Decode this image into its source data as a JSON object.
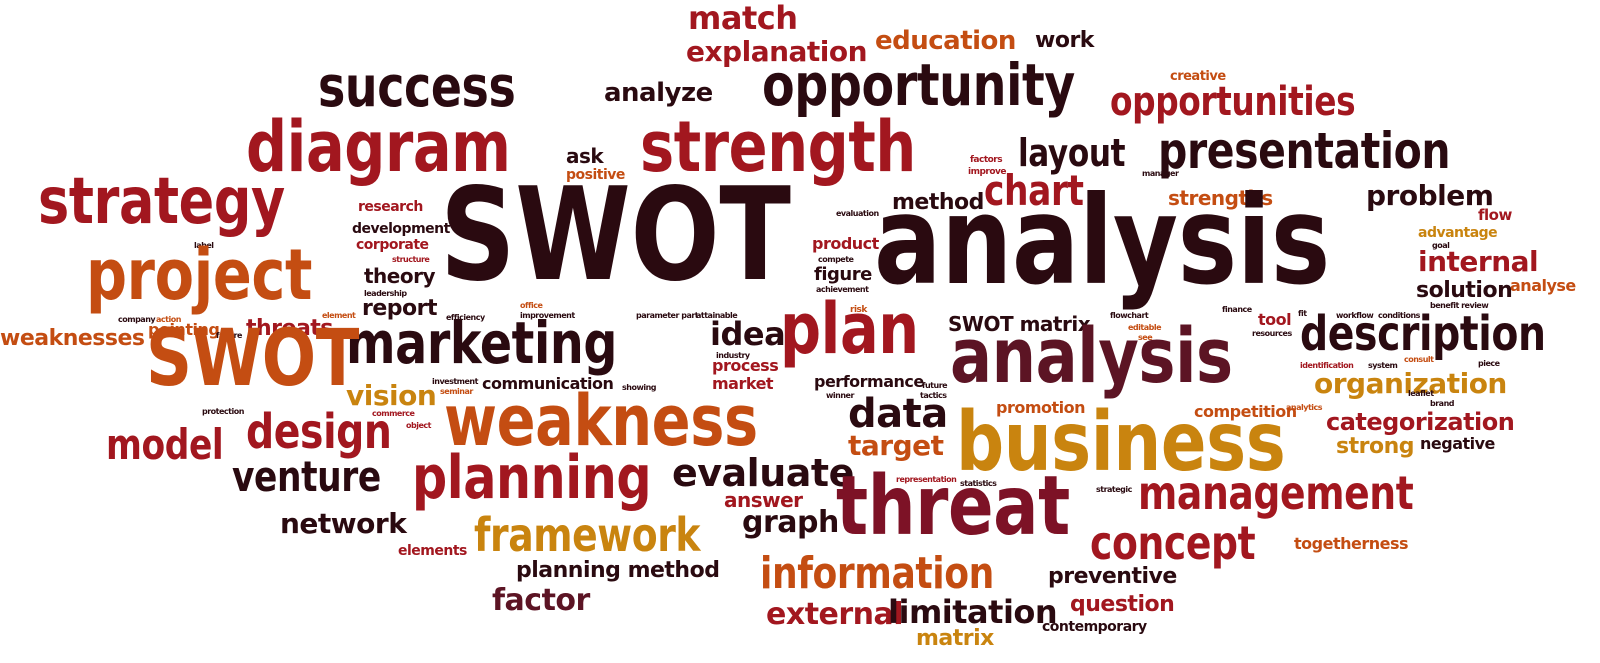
{
  "palette": {
    "dark": "#2a0a10",
    "maroon": "#5c1424",
    "red": "#a2171f",
    "crimson": "#7d1226",
    "orange": "#c44d12",
    "gold": "#c9840f",
    "amber": "#b9681c"
  },
  "words": [
    {
      "id": "match",
      "text": "match"
    },
    {
      "id": "explanation",
      "text": "explanation"
    },
    {
      "id": "education",
      "text": "education"
    },
    {
      "id": "work",
      "text": "work"
    },
    {
      "id": "success",
      "text": "success"
    },
    {
      "id": "analyze",
      "text": "analyze"
    },
    {
      "id": "opportunity",
      "text": "opportunity"
    },
    {
      "id": "creative",
      "text": "creative"
    },
    {
      "id": "opportunities",
      "text": "opportunities"
    },
    {
      "id": "diagram",
      "text": "diagram"
    },
    {
      "id": "ask",
      "text": "ask"
    },
    {
      "id": "positive",
      "text": "positive"
    },
    {
      "id": "strength",
      "text": "strength"
    },
    {
      "id": "factors",
      "text": "factors"
    },
    {
      "id": "improve",
      "text": "improve"
    },
    {
      "id": "layout",
      "text": "layout"
    },
    {
      "id": "manager",
      "text": "manager"
    },
    {
      "id": "presentation",
      "text": "presentation"
    },
    {
      "id": "strategy",
      "text": "strategy"
    },
    {
      "id": "research",
      "text": "research"
    },
    {
      "id": "chart",
      "text": "chart"
    },
    {
      "id": "method",
      "text": "method"
    },
    {
      "id": "strengths",
      "text": "strengths"
    },
    {
      "id": "problem",
      "text": "problem"
    },
    {
      "id": "flow",
      "text": "flow"
    },
    {
      "id": "evaluation",
      "text": "evaluation"
    },
    {
      "id": "development",
      "text": "development"
    },
    {
      "id": "corporate",
      "text": "corporate"
    },
    {
      "id": "swot_big",
      "text": "SWOT"
    },
    {
      "id": "analysis_big",
      "text": "analysis"
    },
    {
      "id": "advantage",
      "text": "advantage"
    },
    {
      "id": "goal",
      "text": "goal"
    },
    {
      "id": "label",
      "text": "label"
    },
    {
      "id": "structure",
      "text": "structure"
    },
    {
      "id": "product",
      "text": "product"
    },
    {
      "id": "compete",
      "text": "compete"
    },
    {
      "id": "internal",
      "text": "internal"
    },
    {
      "id": "project",
      "text": "project"
    },
    {
      "id": "theory",
      "text": "theory"
    },
    {
      "id": "leadership",
      "text": "leadership"
    },
    {
      "id": "figure",
      "text": "figure"
    },
    {
      "id": "achievement",
      "text": "achievement"
    },
    {
      "id": "analyse",
      "text": "analyse"
    },
    {
      "id": "solution",
      "text": "solution"
    },
    {
      "id": "benefit_review",
      "text": "benefit review"
    },
    {
      "id": "report",
      "text": "report"
    },
    {
      "id": "office",
      "text": "office"
    },
    {
      "id": "risk",
      "text": "risk"
    },
    {
      "id": "element",
      "text": "element"
    },
    {
      "id": "company",
      "text": "company"
    },
    {
      "id": "action",
      "text": "action"
    },
    {
      "id": "efficiency",
      "text": "efficiency"
    },
    {
      "id": "improvement",
      "text": "improvement"
    },
    {
      "id": "parameter_part",
      "text": "parameter part"
    },
    {
      "id": "attainable",
      "text": "attainable"
    },
    {
      "id": "finance",
      "text": "finance"
    },
    {
      "id": "workflow",
      "text": "workflow"
    },
    {
      "id": "conditions",
      "text": "conditions"
    },
    {
      "id": "tool",
      "text": "tool"
    },
    {
      "id": "fit",
      "text": "fit"
    },
    {
      "id": "weaknesses",
      "text": "weaknesses"
    },
    {
      "id": "pointing",
      "text": "pointing"
    },
    {
      "id": "threats",
      "text": "threats"
    },
    {
      "id": "failure",
      "text": "failure"
    },
    {
      "id": "marketing",
      "text": "marketing"
    },
    {
      "id": "idea",
      "text": "idea"
    },
    {
      "id": "plan",
      "text": "plan"
    },
    {
      "id": "swot_matrix",
      "text": "SWOT matrix"
    },
    {
      "id": "flowchart",
      "text": "flowchart"
    },
    {
      "id": "editable",
      "text": "editable"
    },
    {
      "id": "see",
      "text": "see"
    },
    {
      "id": "resources",
      "text": "resources"
    },
    {
      "id": "description",
      "text": "description"
    },
    {
      "id": "swot_mid",
      "text": "SWOT"
    },
    {
      "id": "industry",
      "text": "industry"
    },
    {
      "id": "process",
      "text": "process"
    },
    {
      "id": "analysis_mid",
      "text": "analysis"
    },
    {
      "id": "identification",
      "text": "identification"
    },
    {
      "id": "system",
      "text": "system"
    },
    {
      "id": "consult",
      "text": "consult"
    },
    {
      "id": "piece",
      "text": "piece"
    },
    {
      "id": "investment",
      "text": "investment"
    },
    {
      "id": "seminar",
      "text": "seminar"
    },
    {
      "id": "communication",
      "text": "communication"
    },
    {
      "id": "showing",
      "text": "showing"
    },
    {
      "id": "market",
      "text": "market"
    },
    {
      "id": "performance",
      "text": "performance"
    },
    {
      "id": "future",
      "text": "future"
    },
    {
      "id": "tactics",
      "text": "tactics"
    },
    {
      "id": "organization",
      "text": "organization"
    },
    {
      "id": "vision",
      "text": "vision"
    },
    {
      "id": "protection",
      "text": "protection"
    },
    {
      "id": "commerce",
      "text": "commerce"
    },
    {
      "id": "object",
      "text": "object"
    },
    {
      "id": "weakness",
      "text": "weakness"
    },
    {
      "id": "winner",
      "text": "winner"
    },
    {
      "id": "data",
      "text": "data"
    },
    {
      "id": "promotion",
      "text": "promotion"
    },
    {
      "id": "leaflet",
      "text": "leaflet"
    },
    {
      "id": "brand",
      "text": "brand"
    },
    {
      "id": "competition",
      "text": "competition"
    },
    {
      "id": "analytics",
      "text": "analytics"
    },
    {
      "id": "categorization",
      "text": "categorization"
    },
    {
      "id": "model",
      "text": "model"
    },
    {
      "id": "design",
      "text": "design"
    },
    {
      "id": "business",
      "text": "business"
    },
    {
      "id": "strong",
      "text": "strong"
    },
    {
      "id": "negative",
      "text": "negative"
    },
    {
      "id": "target",
      "text": "target"
    },
    {
      "id": "venture",
      "text": "venture"
    },
    {
      "id": "planning",
      "text": "planning"
    },
    {
      "id": "evaluate",
      "text": "evaluate"
    },
    {
      "id": "representation",
      "text": "representation"
    },
    {
      "id": "statistics",
      "text": "statistics"
    },
    {
      "id": "answer",
      "text": "answer"
    },
    {
      "id": "threat",
      "text": "threat"
    },
    {
      "id": "management",
      "text": "management"
    },
    {
      "id": "strategic",
      "text": "strategic"
    },
    {
      "id": "network",
      "text": "network"
    },
    {
      "id": "graph",
      "text": "graph"
    },
    {
      "id": "concept",
      "text": "concept"
    },
    {
      "id": "framework",
      "text": "framework"
    },
    {
      "id": "elements",
      "text": "elements"
    },
    {
      "id": "togetherness",
      "text": "togetherness"
    },
    {
      "id": "planning_method",
      "text": "planning method"
    },
    {
      "id": "information",
      "text": "information"
    },
    {
      "id": "preventive",
      "text": "preventive"
    },
    {
      "id": "factor",
      "text": "factor"
    },
    {
      "id": "question",
      "text": "question"
    },
    {
      "id": "external",
      "text": "external"
    },
    {
      "id": "limitation",
      "text": "limitation"
    },
    {
      "id": "contemporary",
      "text": "contemporary"
    },
    {
      "id": "matrix",
      "text": "matrix"
    }
  ]
}
